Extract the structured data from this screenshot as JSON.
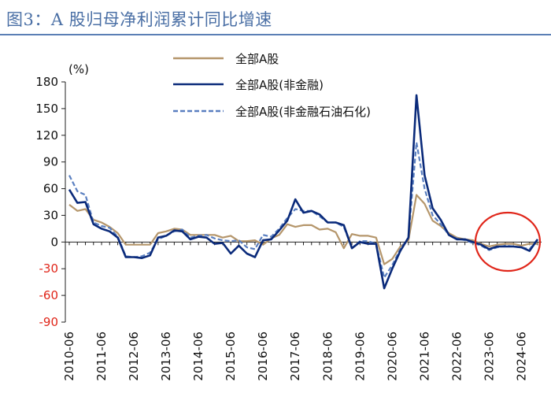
{
  "title": "图3：A 股归母净利润累计同比增速",
  "chart_data": {
    "type": "line",
    "title": "图3：A 股归母净利润累计同比增速",
    "ylabel": "(%)",
    "xlabel": "",
    "ylim": [
      -90,
      180
    ],
    "yticks": [
      180,
      150,
      120,
      90,
      60,
      30,
      0,
      -30,
      -60,
      -90
    ],
    "xticks": [
      "2010-06",
      "2011-06",
      "2012-06",
      "2013-06",
      "2014-06",
      "2015-06",
      "2016-06",
      "2017-06",
      "2018-06",
      "2019-06",
      "2020-06",
      "2021-06",
      "2022-06",
      "2023-06",
      "2024-06"
    ],
    "legend_position": "top",
    "annotation": "red ellipse highlighting 2023-2024 values near zero",
    "x": [
      2010.25,
      2010.5,
      2010.75,
      2011.0,
      2011.25,
      2011.5,
      2011.75,
      2012.0,
      2012.25,
      2012.5,
      2012.75,
      2013.0,
      2013.25,
      2013.5,
      2013.75,
      2014.0,
      2014.25,
      2014.5,
      2014.75,
      2015.0,
      2015.25,
      2015.5,
      2015.75,
      2016.0,
      2016.25,
      2016.5,
      2016.75,
      2017.0,
      2017.25,
      2017.5,
      2017.75,
      2018.0,
      2018.25,
      2018.5,
      2018.75,
      2019.0,
      2019.25,
      2019.5,
      2019.75,
      2020.0,
      2020.25,
      2020.5,
      2020.75,
      2021.0,
      2021.25,
      2021.5,
      2021.75,
      2022.0,
      2022.25,
      2022.5,
      2022.75,
      2023.0,
      2023.25,
      2023.5,
      2023.75,
      2024.0,
      2024.25,
      2024.5,
      2024.75
    ],
    "series": [
      {
        "name": "全部A股",
        "color": "#b5966b",
        "dash": "solid",
        "values": [
          42,
          35,
          37,
          25,
          22,
          17,
          10,
          -3,
          -3,
          -3,
          -3,
          10,
          12,
          15,
          14,
          8,
          8,
          8,
          8,
          5,
          7,
          1,
          1,
          2,
          -3,
          4,
          8,
          20,
          17,
          19,
          19,
          14,
          15,
          11,
          -7,
          9,
          7,
          7,
          5,
          -25,
          -19,
          -5,
          2,
          53,
          43,
          24,
          18,
          10,
          5,
          3,
          2,
          -2,
          -5,
          -3,
          -2,
          -2,
          -4,
          -2,
          -2
        ]
      },
      {
        "name": "全部A股(非金融)",
        "color": "#0a2a7a",
        "dash": "solid",
        "values": [
          59,
          44,
          45,
          20,
          15,
          12,
          5,
          -17,
          -17,
          -18,
          -15,
          5,
          7,
          13,
          12,
          3,
          6,
          5,
          -2,
          -1,
          -13,
          -4,
          -13,
          -17,
          2,
          3,
          13,
          24,
          48,
          33,
          35,
          31,
          22,
          22,
          19,
          -7,
          0,
          -2,
          -2,
          -52,
          -30,
          -10,
          5,
          165,
          75,
          38,
          25,
          8,
          3,
          3,
          0,
          -3,
          -8,
          -5,
          -5,
          -5,
          -6,
          -10,
          3
        ]
      },
      {
        "name": "全部A股(非金融石油石化)",
        "color": "#5a7fc0",
        "dash": "dashed",
        "values": [
          75,
          57,
          53,
          22,
          18,
          16,
          6,
          -16,
          -17,
          -16,
          -12,
          3,
          7,
          12,
          14,
          5,
          7,
          8,
          4,
          2,
          1,
          2,
          -6,
          -8,
          8,
          6,
          15,
          27,
          37,
          35,
          35,
          29,
          22,
          22,
          17,
          -7,
          1,
          1,
          -2,
          -40,
          -26,
          -8,
          5,
          112,
          60,
          30,
          20,
          8,
          4,
          2,
          -1,
          -4,
          -9,
          -6,
          -4,
          -5,
          -6,
          -8,
          3
        ]
      }
    ]
  }
}
